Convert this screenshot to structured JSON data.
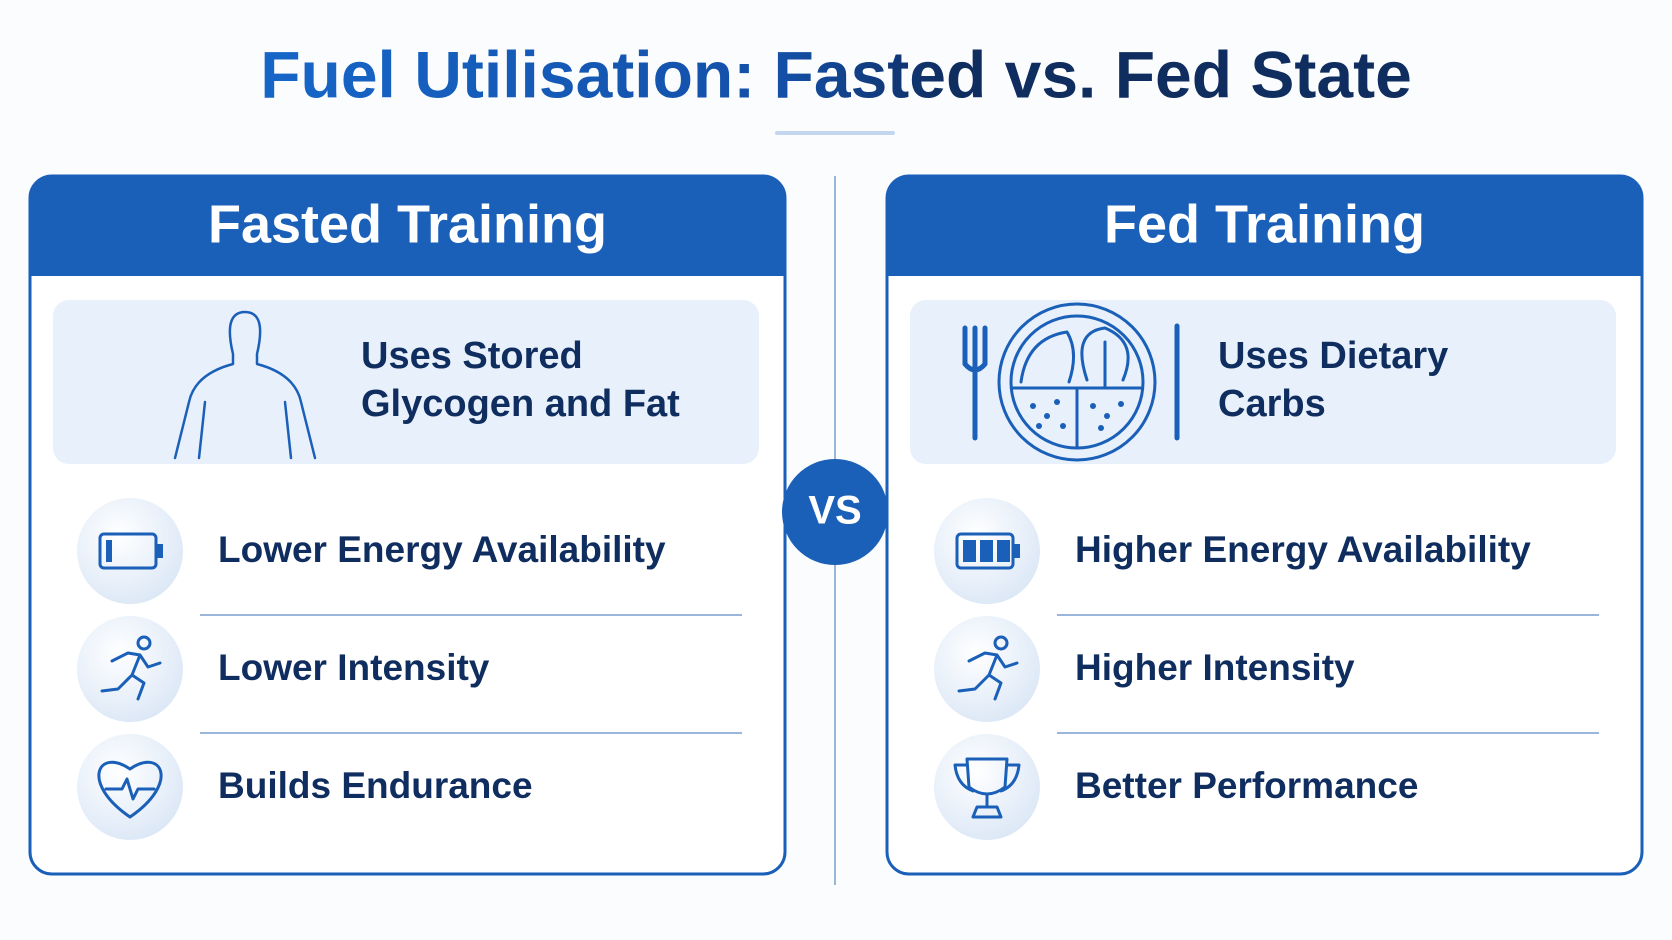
{
  "title": "Fuel Utilisation: Fasted vs. Fed State",
  "vs": "VS",
  "panels": [
    {
      "header": "Fasted Training",
      "summary": [
        "Uses Stored",
        "Glycogen and Fat"
      ],
      "items": [
        "Lower Energy Availability",
        "Lower Intensity",
        "Builds Endurance"
      ]
    },
    {
      "header": "Fed Training",
      "summary": [
        "Uses Dietary",
        "Carbs"
      ],
      "items": [
        "Higher Energy Availability",
        "Higher Intensity",
        "Better Performance"
      ]
    }
  ]
}
